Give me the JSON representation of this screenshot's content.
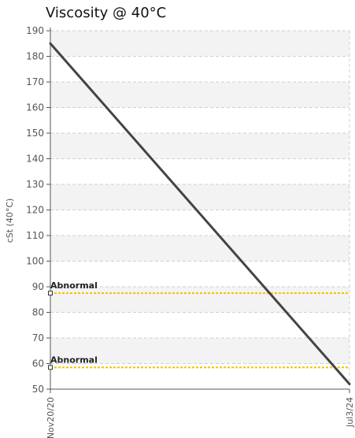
{
  "chart_data": {
    "type": "line",
    "title": "Viscosity @ 40°C",
    "ylabel": "cSt (40°C)",
    "xlabel": "",
    "ylim": [
      50,
      190
    ],
    "y_ticks": [
      50,
      60,
      70,
      80,
      90,
      100,
      110,
      120,
      130,
      140,
      150,
      160,
      170,
      180,
      190
    ],
    "x": [
      "Nov20/20",
      "Jul3/24"
    ],
    "series": [
      {
        "values": [
          185,
          52
        ]
      }
    ],
    "thresholds": [
      {
        "label": "Abnormal",
        "value": 87.5
      },
      {
        "label": "Abnormal",
        "value": 58.5
      }
    ],
    "grid": true,
    "colors": {
      "line": "#444444",
      "threshold": "#f2c200",
      "band": "#f3f3f3",
      "grid": "#cfcfcf",
      "axis": "#555555",
      "tick_text": "#555555"
    }
  }
}
